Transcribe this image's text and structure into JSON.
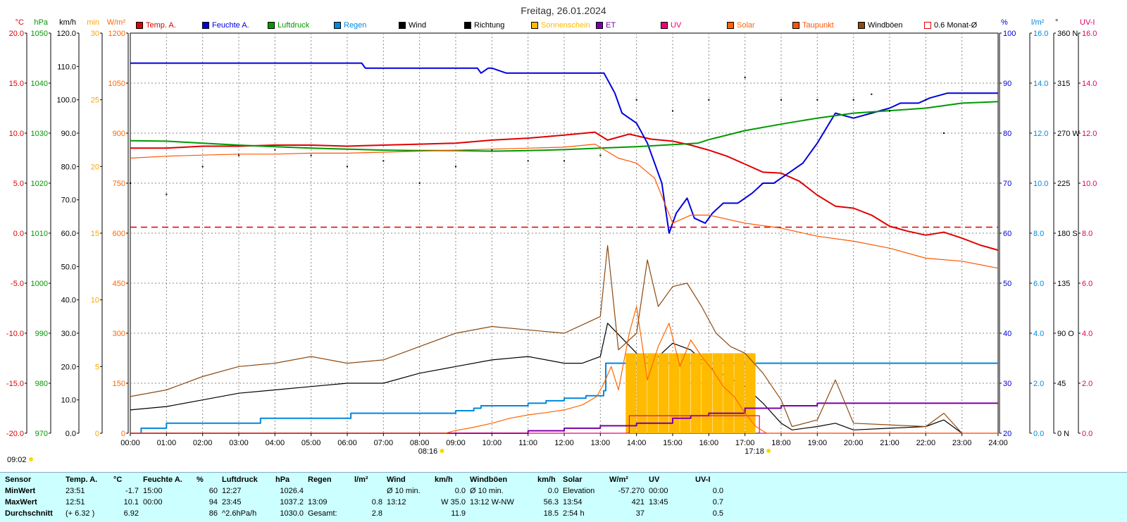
{
  "chart_data": {
    "type": "line",
    "title": "Freitag, 26.01.2024",
    "x_ticks": [
      "00:00",
      "01:00",
      "02:00",
      "03:00",
      "04:00",
      "05:00",
      "06:00",
      "07:00",
      "08:00",
      "09:00",
      "10:00",
      "11:00",
      "12:00",
      "13:00",
      "14:00",
      "15:00",
      "16:00",
      "17:00",
      "18:00",
      "19:00",
      "20:00",
      "21:00",
      "22:00",
      "23:00",
      "24:00"
    ],
    "xlim": [
      0,
      24
    ],
    "grid": true,
    "legend_position": "top",
    "axes": [
      {
        "unit": "°C",
        "color": "#e00000",
        "ylim": [
          -20,
          20
        ],
        "ticks": [
          "20.0",
          "15.0",
          "10.0",
          "5.0",
          "0.0",
          "-5.0",
          "-10.0",
          "-15.0",
          "-20.0"
        ]
      },
      {
        "unit": "hPa",
        "color": "#009900",
        "ylim": [
          970,
          1050
        ],
        "ticks": [
          "1050",
          "1040",
          "1030",
          "1020",
          "1010",
          "1000",
          "990",
          "980",
          "970"
        ]
      },
      {
        "unit": "km/h",
        "color": "#000000",
        "ylim": [
          0,
          120
        ],
        "ticks": [
          "120.0",
          "110.0",
          "100.0",
          "90.0",
          "80.0",
          "70.0",
          "60.0",
          "50.0",
          "40.0",
          "30.0",
          "20.0",
          "10.0",
          "0.0"
        ]
      },
      {
        "unit": "min",
        "color": "#ffa500",
        "ylim": [
          0,
          30
        ],
        "ticks": [
          "30",
          "25",
          "20",
          "15",
          "10",
          "5",
          "0"
        ]
      },
      {
        "unit": "W/m²",
        "color": "#ff6600",
        "ylim": [
          0,
          1200
        ],
        "ticks": [
          "1200",
          "1050",
          "900",
          "750",
          "600",
          "450",
          "300",
          "150",
          "0"
        ]
      },
      {
        "unit": "%",
        "color": "#0000dd",
        "ylim": [
          20,
          100
        ],
        "ticks": [
          "100",
          "90",
          "80",
          "70",
          "60",
          "50",
          "40",
          "30",
          "20"
        ]
      },
      {
        "unit": "l/m²",
        "color": "#0088dd",
        "ylim": [
          0,
          16
        ],
        "ticks": [
          "16.0",
          "14.0",
          "12.0",
          "10.0",
          "8.0",
          "6.0",
          "4.0",
          "2.0",
          "0.0"
        ]
      },
      {
        "unit": "°",
        "color": "#000000",
        "ylim": [
          0,
          360
        ],
        "ticks": [
          "360 N",
          "315",
          "270 W",
          "225",
          "180 S",
          "135",
          "90 O",
          "45",
          "0 N"
        ]
      },
      {
        "unit": "UV-I",
        "color": "#dd0066",
        "ylim": [
          0,
          16
        ],
        "ticks": [
          "16.0",
          "14.0",
          "12.0",
          "10.0",
          "8.0",
          "6.0",
          "4.0",
          "2.0",
          "0.0"
        ]
      }
    ],
    "series": [
      {
        "name": "Temp. A.",
        "color": "#e00000",
        "axis": "°C",
        "x": [
          0,
          1,
          2,
          3,
          4,
          5,
          6,
          7,
          8,
          9,
          10,
          11,
          12,
          12.85,
          13.2,
          13.8,
          14.4,
          15,
          15.5,
          16,
          16.5,
          17,
          17.5,
          18,
          18.5,
          19,
          19.5,
          20,
          20.5,
          21,
          21.5,
          22,
          22.5,
          23,
          23.51,
          24
        ],
        "y": [
          8.5,
          8.5,
          8.7,
          8.7,
          8.8,
          8.8,
          8.7,
          8.8,
          8.9,
          9.0,
          9.3,
          9.5,
          9.8,
          10.1,
          9.3,
          9.9,
          9.4,
          9.2,
          8.8,
          8.3,
          7.7,
          6.9,
          6.1,
          6.0,
          5.2,
          3.8,
          2.7,
          2.5,
          1.8,
          0.7,
          0.2,
          -0.2,
          0.1,
          -0.5,
          -1.2,
          -1.7
        ]
      },
      {
        "name": "Feuchte A.",
        "color": "#0000dd",
        "axis": "%",
        "x": [
          0,
          6.4,
          6.5,
          9.6,
          9.7,
          9.9,
          10,
          10.4,
          10.5,
          13.1,
          13.4,
          13.6,
          14,
          14.3,
          14.7,
          14.9,
          15.1,
          15.4,
          15.6,
          15.9,
          16.1,
          16.4,
          16.8,
          17.2,
          17.5,
          17.8,
          18.2,
          18.6,
          19,
          19.5,
          20,
          20.5,
          21,
          21.3,
          21.8,
          22.1,
          22.6,
          23,
          24
        ],
        "y": [
          94,
          94,
          93,
          93,
          92,
          93,
          93,
          92,
          92,
          92,
          88,
          84,
          82,
          78,
          70,
          60,
          64,
          67,
          63,
          62,
          64,
          66,
          66,
          68,
          70,
          70,
          72,
          74,
          78,
          84,
          83,
          84,
          85,
          86,
          86,
          87,
          88,
          88,
          88
        ]
      },
      {
        "name": "Luftdruck",
        "color": "#009900",
        "axis": "hPa",
        "x": [
          0,
          1,
          2,
          3,
          4,
          5,
          6,
          7,
          8,
          9,
          10,
          11,
          12,
          13,
          14,
          15,
          15.7,
          16,
          17,
          18,
          19,
          20,
          21,
          22,
          23,
          24
        ],
        "y": [
          1028.5,
          1028.4,
          1028.0,
          1027.6,
          1027.3,
          1027.0,
          1026.8,
          1026.6,
          1026.5,
          1026.5,
          1026.4,
          1026.5,
          1026.7,
          1027.0,
          1027.3,
          1027.7,
          1028.0,
          1028.7,
          1030.5,
          1031.8,
          1033.0,
          1034.0,
          1034.5,
          1035.0,
          1036.0,
          1036.3
        ]
      },
      {
        "name": "Regen",
        "color": "#0088dd",
        "axis": "l/m²",
        "x": [
          0,
          0.3,
          0.95,
          1.0,
          3.55,
          3.6,
          6.05,
          6.1,
          8.5,
          9.0,
          9.5,
          9.7,
          11.0,
          11.5,
          12.0,
          12.6,
          13.09,
          13.15,
          24
        ],
        "y": [
          0,
          0.2,
          0.2,
          0.4,
          0.4,
          0.6,
          0.6,
          0.8,
          0.8,
          0.9,
          1.0,
          1.1,
          1.2,
          1.3,
          1.4,
          1.5,
          1.7,
          2.8,
          2.8
        ]
      },
      {
        "name": "Wind",
        "color": "#000000",
        "axis": "km/h",
        "x": [
          0,
          1,
          2,
          3,
          4,
          5,
          6,
          7,
          8,
          9,
          10,
          11,
          12,
          12.5,
          13,
          13.2,
          14,
          14.5,
          15,
          15.5,
          16,
          16.5,
          17,
          17.5,
          18,
          18.3,
          19,
          19.5,
          20,
          22,
          22.5,
          23
        ],
        "y": [
          7,
          8,
          10,
          12,
          13,
          14,
          15,
          15,
          18,
          20,
          22,
          23,
          21,
          21,
          23,
          33,
          24,
          22,
          27,
          25,
          20,
          17,
          14,
          9,
          3,
          1,
          2,
          3,
          1,
          2,
          4,
          0
        ]
      },
      {
        "name": "Richtung",
        "color": "#000000",
        "axis": "°",
        "x": [
          0,
          1,
          2,
          3,
          4,
          5,
          6,
          7,
          8,
          9,
          10,
          11,
          12,
          13,
          14,
          15,
          16,
          17,
          18,
          19,
          20,
          20.5,
          21,
          22,
          22.5
        ],
        "y": [
          225,
          215,
          240,
          250,
          255,
          250,
          240,
          245,
          225,
          240,
          255,
          245,
          245,
          250,
          300,
          290,
          300,
          320,
          300,
          300,
          300,
          305,
          290,
          300,
          270
        ]
      },
      {
        "name": "Sonnenschein",
        "color": "#ffbb00",
        "axis": "min",
        "x": [
          13.7,
          14.0,
          14.3,
          14.6,
          14.9,
          15.2,
          15.5,
          15.8,
          16.1,
          16.4,
          16.7,
          17.0,
          17.3
        ],
        "y": [
          6,
          6,
          6,
          6,
          6,
          6,
          6,
          6,
          6,
          6,
          6,
          6,
          0
        ]
      },
      {
        "name": "ET",
        "color": "#7700aa",
        "axis": "l/m²",
        "x": [
          0,
          10,
          11,
          12,
          13,
          14,
          15,
          15.5,
          16,
          17,
          18,
          19,
          20,
          21,
          22,
          23,
          24
        ],
        "y": [
          0,
          0,
          0.1,
          0.2,
          0.3,
          0.4,
          0.6,
          0.7,
          0.8,
          1.0,
          1.1,
          1.2,
          1.2,
          1.2,
          1.2,
          1.2,
          1.2
        ]
      },
      {
        "name": "UV",
        "color": "#ee0077",
        "axis": "UV-I",
        "x": [
          0,
          13.7,
          13.8,
          17.3,
          17.4,
          24
        ],
        "y": [
          0,
          0,
          0.7,
          0.7,
          0,
          0
        ]
      },
      {
        "name": "Solar",
        "color": "#ff6600",
        "axis": "W/m²",
        "x": [
          0,
          8.7,
          9,
          9.5,
          10,
          10.5,
          11,
          11.5,
          12,
          12.5,
          12.9,
          13.1,
          13.3,
          13.5,
          13.8,
          14,
          14.3,
          14.6,
          14.9,
          15.2,
          15.5,
          15.8,
          16.1,
          16.4,
          16.7,
          17,
          17.3,
          17.6,
          24
        ],
        "y": [
          0,
          0,
          8,
          18,
          30,
          45,
          55,
          62,
          70,
          85,
          110,
          150,
          200,
          130,
          300,
          380,
          160,
          260,
          330,
          200,
          280,
          230,
          190,
          140,
          110,
          60,
          20,
          0,
          0
        ]
      },
      {
        "name": "Taupunkt",
        "color": "#ff5500",
        "axis": "°C",
        "x": [
          0,
          1,
          2,
          3,
          4,
          5,
          6,
          7,
          8,
          9,
          10,
          11,
          12,
          12.85,
          13.5,
          14,
          14.5,
          15,
          15.5,
          16,
          17,
          18,
          19,
          20,
          21,
          22,
          23,
          24
        ],
        "y": [
          7.5,
          7.7,
          7.8,
          7.9,
          7.9,
          8.0,
          8.0,
          8.1,
          8.2,
          8.3,
          8.4,
          8.5,
          8.6,
          8.9,
          7.5,
          7.0,
          5.5,
          1.0,
          1.8,
          1.8,
          1.0,
          0.5,
          -0.3,
          -0.8,
          -1.5,
          -2.5,
          -2.8,
          -3.5
        ]
      },
      {
        "name": "Windböen",
        "color": "#8b4a12",
        "axis": "km/h",
        "x": [
          0,
          1,
          2,
          3,
          4,
          5,
          6,
          7,
          8,
          9,
          10,
          11,
          12,
          12.6,
          13,
          13.2,
          13.5,
          14,
          14.3,
          14.6,
          15,
          15.4,
          15.8,
          16.2,
          16.6,
          17,
          17.5,
          18,
          18.3,
          19,
          19.5,
          20,
          22,
          22.5,
          23
        ],
        "y": [
          11,
          13,
          17,
          20,
          21,
          23,
          21,
          22,
          26,
          30,
          32,
          31,
          30,
          33,
          35,
          56.3,
          25,
          30,
          52,
          38,
          44,
          45,
          38,
          30,
          26,
          24,
          18,
          10,
          2,
          4,
          16,
          3,
          2,
          6,
          0
        ]
      }
    ],
    "reference_lines": [
      {
        "label": "0.6 Monat-Ø",
        "value": 0.6,
        "axis": "°C",
        "color": "#e00000",
        "style": "dashed"
      }
    ],
    "annotations": [
      {
        "label": "09:02",
        "position": "bottom-left"
      },
      {
        "label": "08:16",
        "x": 8.27
      },
      {
        "label": "17:18",
        "x": 17.3
      }
    ]
  },
  "stats": {
    "headers": {
      "sensor": "Sensor",
      "temp": "Temp. A.",
      "temp_unit": "°C",
      "hum": "Feuchte A.",
      "hum_unit": "%",
      "press": "Luftdruck",
      "press_unit": "hPa",
      "rain": "Regen",
      "rain_unit": "l/m²",
      "wind": "Wind",
      "wind_unit": "km/h",
      "gust": "Windböen",
      "gust_unit": "km/h",
      "solar": "Solar",
      "solar_unit": "W/m²",
      "uv": "UV",
      "uv_unit": "UV-I"
    },
    "rows": [
      {
        "label": "MinWert",
        "temp_t": "23:51",
        "temp_v": "-1.7",
        "hum_t": "15:00",
        "hum_v": "60",
        "press_t": "12:27",
        "press_v": "1026.4",
        "rain_t": "",
        "rain_v": "",
        "wind_t": "Ø 10 min.",
        "wind_v": "0.0",
        "gust_t": "Ø 10 min.",
        "gust_v": "0.0",
        "solar_t": "Elevation",
        "solar_v": "-57.270",
        "uv_t": "00:00",
        "uv_v": "0.0"
      },
      {
        "label": "MaxWert",
        "temp_t": "12:51",
        "temp_v": "10.1",
        "hum_t": "00:00",
        "hum_v": "94",
        "press_t": "23:45",
        "press_v": "1037.2",
        "rain_t": "13:09",
        "rain_v": "0.8",
        "wind_t": "13:12",
        "wind_v": "W 35.0",
        "gust_t": "13:12   W-NW",
        "gust_v": "56.3",
        "solar_t": "13:54",
        "solar_v": "421",
        "uv_t": "13:45",
        "uv_v": "0.7"
      },
      {
        "label": "Durchschnitt",
        "temp_t": "(+ 6.32 )",
        "temp_v": "6.92",
        "hum_t": "",
        "hum_v": "86",
        "press_t": "^2.6hPa/h",
        "press_v": "1030.0",
        "rain_t": "Gesamt:",
        "rain_v": "2.8",
        "wind_t": "",
        "wind_v": "11.9",
        "gust_t": "",
        "gust_v": "18.5",
        "solar_t": "2:54 h",
        "solar_v": "37",
        "uv_t": "",
        "uv_v": "0.5"
      }
    ]
  }
}
